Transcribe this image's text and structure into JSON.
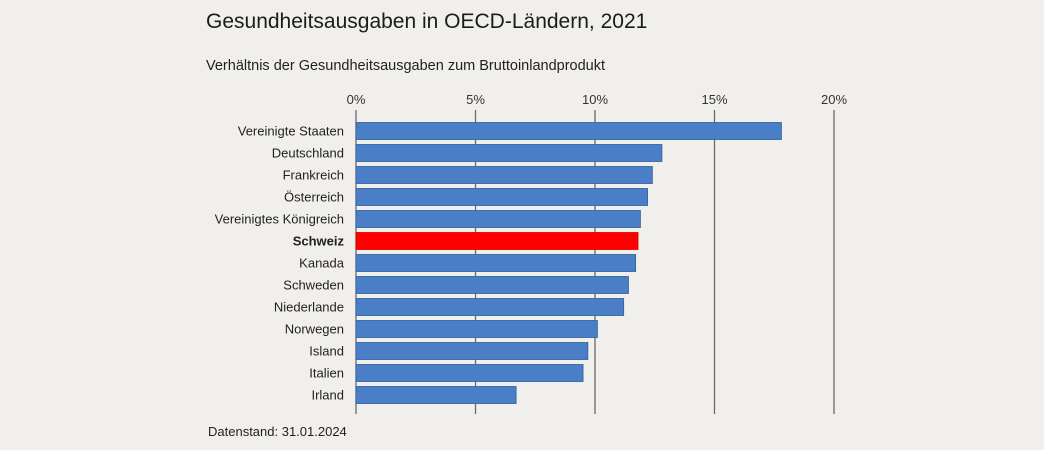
{
  "title": "Gesundheitsausgaben in OECD-Ländern, 2021",
  "subtitle": "Verhältnis der Gesundheitsausgaben zum Bruttoinlandprodukt",
  "footer": "Datenstand: 31.01.2024",
  "colors": {
    "bar": "#4a7ec6",
    "bar_border": "#2f5f9e",
    "highlight": "#ff0000",
    "highlight_border": "#d10000",
    "gridline": "#6a6a6a",
    "background": "#f1efeb"
  },
  "chart_data": {
    "type": "bar",
    "orientation": "horizontal",
    "categories": [
      "Vereinigte Staaten",
      "Deutschland",
      "Frankreich",
      "Österreich",
      "Vereinigtes Königreich",
      "Schweiz",
      "Kanada",
      "Schweden",
      "Niederlande",
      "Norwegen",
      "Island",
      "Italien",
      "Irland"
    ],
    "values": [
      17.8,
      12.8,
      12.4,
      12.2,
      11.9,
      11.8,
      11.7,
      11.4,
      11.2,
      10.1,
      9.7,
      9.5,
      6.7
    ],
    "unit": "%",
    "highlight": "Schweiz",
    "xlim": [
      0,
      20
    ],
    "xticks": [
      0,
      5,
      10,
      15,
      20
    ],
    "xtick_labels": [
      "0%",
      "5%",
      "10%",
      "15%",
      "20%"
    ],
    "axis_position": "top",
    "grid": true
  }
}
